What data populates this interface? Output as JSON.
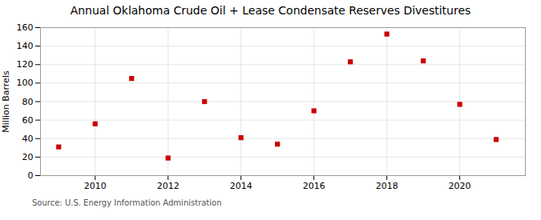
{
  "chart_data": {
    "type": "scatter",
    "title": "Annual Oklahoma Crude Oil + Lease Condensate Reserves Divestitures",
    "ylabel": "Million Barrels",
    "source": "Source: U.S. Energy Information Administration",
    "x": [
      2009,
      2010,
      2011,
      2012,
      2013,
      2014,
      2015,
      2016,
      2017,
      2018,
      2019,
      2020,
      2021
    ],
    "values": [
      31,
      56,
      105,
      19,
      80,
      41,
      34,
      70,
      123,
      153,
      124,
      77,
      39
    ],
    "color": "#cc0000",
    "marker": "square",
    "xlim": [
      2008.5,
      2021.8
    ],
    "xticks": [
      2010,
      2012,
      2014,
      2016,
      2018,
      2020
    ],
    "ylim": [
      0,
      160
    ],
    "yticks": [
      0,
      20,
      40,
      60,
      80,
      100,
      120,
      140,
      160
    ],
    "grid": true
  }
}
